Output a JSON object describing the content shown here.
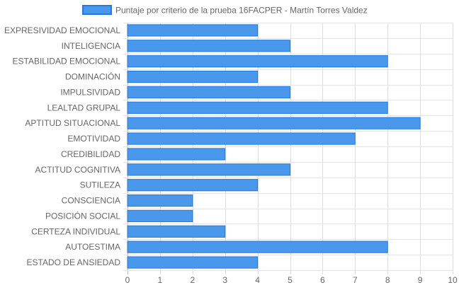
{
  "chart_data": {
    "type": "bar",
    "orientation": "horizontal",
    "series": [
      {
        "name": "Puntaje por criterio de la prueba 16FACPER - Martín Torres Valdez",
        "color": "#4a98ec",
        "border_color": "#1e7ae6",
        "values": [
          4,
          5,
          8,
          4,
          5,
          8,
          9,
          7,
          3,
          5,
          4,
          2,
          2,
          3,
          8,
          4
        ]
      }
    ],
    "categories": [
      "EXPRESIVIDAD EMOCIONAL",
      "INTELIGENCIA",
      "ESTABILIDAD EMOCIONAL",
      "DOMINACIÓN",
      "IMPULSIVIDAD",
      "LEALTAD GRUPAL",
      "APTITUD SITUACIONAL",
      "EMOTIVIDAD",
      "CREDIBILIDAD",
      "ACTITUD COGNITIVA",
      "SUTILEZA",
      "CONSCIENCIA",
      "POSICIÓN SOCIAL",
      "CERTEZA INDIVIDUAL",
      "AUTOESTIMA",
      "ESTADO DE ANSIEDAD"
    ],
    "x_ticks": [
      "0",
      "1",
      "2",
      "3",
      "4",
      "5",
      "6",
      "7",
      "8",
      "9",
      "10"
    ],
    "xlim": [
      0,
      10
    ],
    "grid": true,
    "legend_position": "top"
  }
}
